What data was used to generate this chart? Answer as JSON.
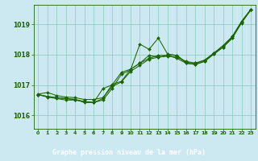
{
  "xlabel": "Graphe pression niveau de la mer (hPa)",
  "bg_color": "#cce8f0",
  "plot_bg_color": "#cce8f0",
  "line_color": "#1a6600",
  "grid_color": "#88ccbb",
  "xlabel_bg": "#2d6b2d",
  "xlabel_fg": "#ffffff",
  "xlim": [
    -0.5,
    23.5
  ],
  "ylim": [
    1015.55,
    1019.65
  ],
  "yticks": [
    1016,
    1017,
    1018,
    1019
  ],
  "xticks": [
    0,
    1,
    2,
    3,
    4,
    5,
    6,
    7,
    8,
    9,
    10,
    11,
    12,
    13,
    14,
    15,
    16,
    17,
    18,
    19,
    20,
    21,
    22,
    23
  ],
  "series": [
    [
      1016.7,
      1016.75,
      1016.65,
      1016.6,
      1016.58,
      1016.52,
      1016.52,
      1016.58,
      1016.95,
      1017.1,
      1017.45,
      1017.65,
      1017.85,
      1017.92,
      1017.95,
      1017.92,
      1017.78,
      1017.72,
      1017.82,
      1018.05,
      1018.3,
      1018.6,
      1019.1,
      1019.5
    ],
    [
      1016.68,
      1016.6,
      1016.55,
      1016.5,
      1016.5,
      1016.45,
      1016.42,
      1016.5,
      1016.88,
      1017.35,
      1017.5,
      1018.35,
      1018.18,
      1018.55,
      1018.02,
      1017.98,
      1017.75,
      1017.72,
      1017.82,
      1018.05,
      1018.3,
      1018.6,
      1019.1,
      1019.5
    ],
    [
      1016.68,
      1016.62,
      1016.58,
      1016.55,
      1016.52,
      1016.45,
      1016.42,
      1016.88,
      1017.0,
      1017.42,
      1017.52,
      1017.72,
      1017.88,
      1017.98,
      1017.98,
      1017.88,
      1017.72,
      1017.68,
      1017.78,
      1018.02,
      1018.25,
      1018.55,
      1019.05,
      1019.48
    ],
    [
      1016.68,
      1016.62,
      1016.58,
      1016.55,
      1016.52,
      1016.42,
      1016.42,
      1016.55,
      1017.02,
      1017.12,
      1017.52,
      1017.72,
      1017.98,
      1017.92,
      1017.98,
      1017.98,
      1017.72,
      1017.68,
      1017.78,
      1018.02,
      1018.25,
      1018.55,
      1019.08,
      1019.48
    ]
  ]
}
